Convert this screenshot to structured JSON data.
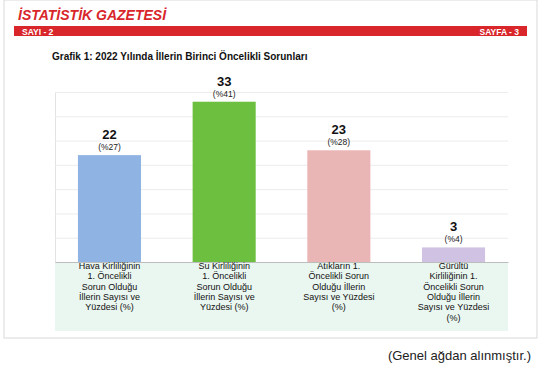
{
  "header": {
    "title": "İSTATİSTİK GAZETESİ",
    "issue": "SAYI - 2",
    "page": "SAYFA - 3"
  },
  "chart_data": {
    "type": "bar",
    "title": "Grafik 1: 2022 Yılında İllerin Birinci Öncelikli Sorunları",
    "categories": [
      "Hava Kirliliğinin 1. Öncelikli Sorun Olduğu İllerin Sayısı ve Yüzdesi (%)",
      "Su Kirliliğinin 1. Öncelikli Sorun Olduğu İllerin Sayısı ve Yüzdesi (%)",
      "Atıkların 1. Öncelikli Sorun Olduğu İllerin Sayısı ve Yüzdesi (%)",
      "Gürültü Kirliliğinin 1. Öncelikli Sorun Olduğu İllerin Sayısı ve Yüzdesi (%)"
    ],
    "values": [
      22,
      33,
      23,
      3
    ],
    "percent_labels": [
      "(%27)",
      "(%41)",
      "(%28)",
      "(%4)"
    ],
    "colors": [
      "#8fb4e3",
      "#6cbf3f",
      "#eab5b5",
      "#cfc2e3"
    ],
    "ylim": [
      0,
      35
    ],
    "yticks": [
      0,
      5,
      10,
      15,
      20,
      25,
      30,
      35
    ],
    "grid": true,
    "tick_labels": false,
    "data_labels": true
  },
  "source": "(Genel ağdan alınmıştır.)"
}
